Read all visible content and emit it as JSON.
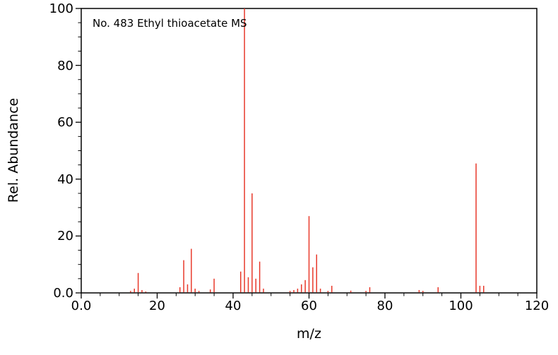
{
  "chart": {
    "title": "No. 483 Ethyl thioacetate MS",
    "xlabel": "m/z",
    "ylabel": "Rel. Abundance",
    "x_tick_labels": [
      "0.0",
      "20",
      "40",
      "60",
      "80",
      "100",
      "120"
    ],
    "y_tick_labels": [
      "0.0",
      "20",
      "40",
      "60",
      "80",
      "100"
    ]
  },
  "chart_data": {
    "type": "bar",
    "chart_kind": "mass-spectrum",
    "title": "No. 483 Ethyl thioacetate MS",
    "xlabel": "m/z",
    "ylabel": "Rel. Abundance",
    "xlim": [
      0,
      120
    ],
    "ylim": [
      0,
      100
    ],
    "x_major_ticks": [
      0,
      20,
      40,
      60,
      80,
      100,
      120
    ],
    "y_major_ticks": [
      0,
      20,
      40,
      60,
      80,
      100
    ],
    "minor_tick_step": 5,
    "grid": false,
    "legend": false,
    "peak_color": "#e8392b",
    "axis_color": "#000000",
    "peaks": [
      [
        13,
        0.7
      ],
      [
        14,
        1.5
      ],
      [
        15,
        7
      ],
      [
        16,
        1
      ],
      [
        17,
        0.5
      ],
      [
        26,
        2
      ],
      [
        27,
        11.5
      ],
      [
        28,
        3
      ],
      [
        29,
        15.5
      ],
      [
        30,
        1.5
      ],
      [
        31,
        0.7
      ],
      [
        34,
        1.2
      ],
      [
        35,
        5
      ],
      [
        42,
        7.5
      ],
      [
        43,
        100
      ],
      [
        44,
        5.5
      ],
      [
        45,
        35
      ],
      [
        46,
        5
      ],
      [
        47,
        11
      ],
      [
        48,
        1.5
      ],
      [
        55,
        0.7
      ],
      [
        56,
        1
      ],
      [
        57,
        1.5
      ],
      [
        58,
        3
      ],
      [
        59,
        4.5
      ],
      [
        60,
        27
      ],
      [
        61,
        9
      ],
      [
        62,
        13.5
      ],
      [
        63,
        1.5
      ],
      [
        65,
        0.7
      ],
      [
        66,
        2.5
      ],
      [
        71,
        0.8
      ],
      [
        75,
        0.7
      ],
      [
        76,
        2
      ],
      [
        89,
        1
      ],
      [
        90,
        0.7
      ],
      [
        94,
        2
      ],
      [
        104,
        45.5
      ],
      [
        105,
        2.5
      ],
      [
        106,
        2.5
      ]
    ]
  }
}
